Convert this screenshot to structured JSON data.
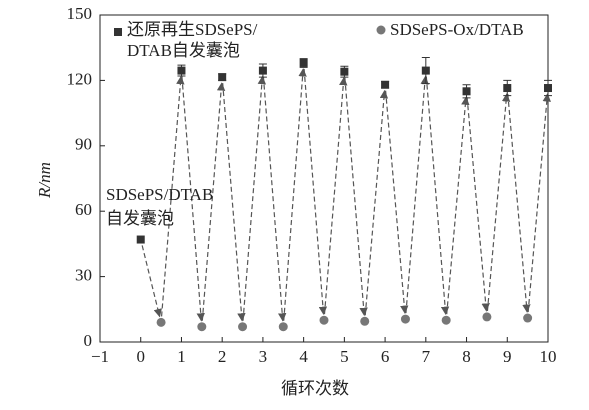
{
  "chart_data": {
    "type": "scatter",
    "x_label": "循环次数",
    "y_label": "R/nm",
    "xlim": [
      -1,
      10
    ],
    "xticks": [
      {
        "value": -1,
        "label": "−1"
      },
      0,
      1,
      2,
      3,
      4,
      5,
      6,
      7,
      8,
      9,
      10
    ],
    "ylim": [
      0,
      150
    ],
    "yticks": [
      0,
      30,
      60,
      90,
      120,
      150
    ],
    "annotation": "SDSePS/DTAB自发囊泡",
    "series": [
      {
        "name": "还原再生SDSePS/DTAB自发囊泡",
        "marker": "square",
        "color": "#333333",
        "x": [
          0,
          1,
          2,
          3,
          4,
          5,
          6,
          7,
          8,
          9,
          10
        ],
        "values": [
          47,
          124.5,
          121.5,
          124.5,
          128,
          124,
          118,
          124.5,
          115,
          116.5,
          116.5
        ],
        "errors": [
          0,
          2.5,
          1.5,
          3,
          2,
          2.5,
          1.5,
          6,
          3,
          3.5,
          3.5
        ]
      },
      {
        "name": "SDSePS-Ox/DTAB",
        "marker": "circle",
        "color": "#777777",
        "x": [
          0.5,
          1.5,
          2.5,
          3.5,
          4.5,
          5.5,
          6.5,
          7.5,
          8.5,
          9.5
        ],
        "values": [
          9,
          7,
          7,
          7,
          10,
          9.5,
          10.5,
          10,
          11.5,
          11
        ]
      }
    ]
  }
}
